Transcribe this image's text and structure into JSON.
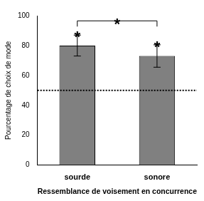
{
  "chart_data": {
    "type": "bar",
    "categories": [
      "sourde",
      "sonore"
    ],
    "values": [
      80,
      73
    ],
    "errors": [
      7,
      7.5
    ],
    "color": "#808080",
    "ylim": [
      0,
      100
    ],
    "yticks": [
      0,
      20,
      40,
      60,
      80,
      100
    ],
    "y_label": "Pourcentage de choix de mode",
    "x_label": "Ressemblance de voisement en concurrence",
    "reference_line": 50,
    "bar_marks": [
      "*",
      "*"
    ],
    "bracket": {
      "categories": [
        "sourde",
        "sonore"
      ],
      "label": "*"
    },
    "grid": false
  }
}
